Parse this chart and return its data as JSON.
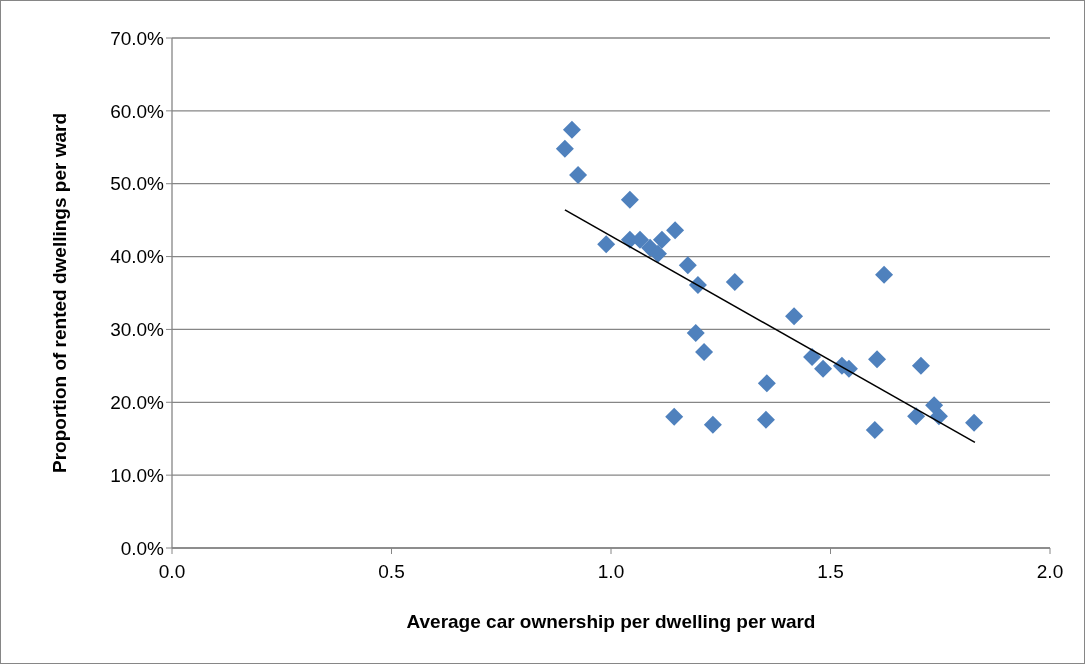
{
  "chart_data": {
    "type": "scatter",
    "xlabel": "Average car ownership per dwelling per ward",
    "ylabel": "Proportion of rented dwellings per ward",
    "xlim": [
      0,
      2
    ],
    "xticks": [
      {
        "value": 0,
        "label": "0.0"
      },
      {
        "value": 0.5,
        "label": "0.5"
      },
      {
        "value": 1,
        "label": "1.0"
      },
      {
        "value": 1.5,
        "label": "1.5"
      },
      {
        "value": 2,
        "label": "2.0"
      }
    ],
    "ylim": [
      0,
      70
    ],
    "yticks": [
      {
        "value": 0,
        "label": "0.0%"
      },
      {
        "value": 10,
        "label": "10.0%"
      },
      {
        "value": 20,
        "label": "20.0%"
      },
      {
        "value": 30,
        "label": "30.0%"
      },
      {
        "value": 40,
        "label": "40.0%"
      },
      {
        "value": 50,
        "label": "50.0%"
      },
      {
        "value": 60,
        "label": "60.0%"
      },
      {
        "value": 70,
        "label": "70.0%"
      }
    ],
    "grid": "y",
    "marker": "diamond",
    "series": [
      {
        "color": "#4f81bd",
        "x": [
          0.895,
          0.911,
          0.925,
          0.989,
          1.043,
          1.043,
          1.066,
          1.089,
          1.107,
          1.116,
          1.146,
          1.175,
          1.198,
          1.193,
          1.212,
          1.144,
          1.232,
          1.282,
          1.353,
          1.355,
          1.417,
          1.458,
          1.483,
          1.526,
          1.542,
          1.606,
          1.601,
          1.622,
          1.695,
          1.706,
          1.736,
          1.747,
          1.827
        ],
        "values": [
          54.8,
          57.4,
          51.2,
          41.7,
          47.8,
          42.3,
          42.3,
          41.2,
          40.4,
          42.3,
          43.6,
          38.8,
          36.1,
          29.5,
          26.9,
          18.0,
          16.9,
          36.5,
          17.6,
          22.6,
          31.8,
          26.2,
          24.6,
          25.0,
          24.6,
          25.9,
          16.2,
          37.5,
          18.1,
          25.0,
          19.6,
          18.1,
          17.2
        ]
      },
      {
        "type": "line",
        "color": "#000000",
        "marker": "none",
        "x": [
          0.895,
          1.829
        ],
        "values": [
          46.4,
          14.5
        ]
      }
    ]
  }
}
